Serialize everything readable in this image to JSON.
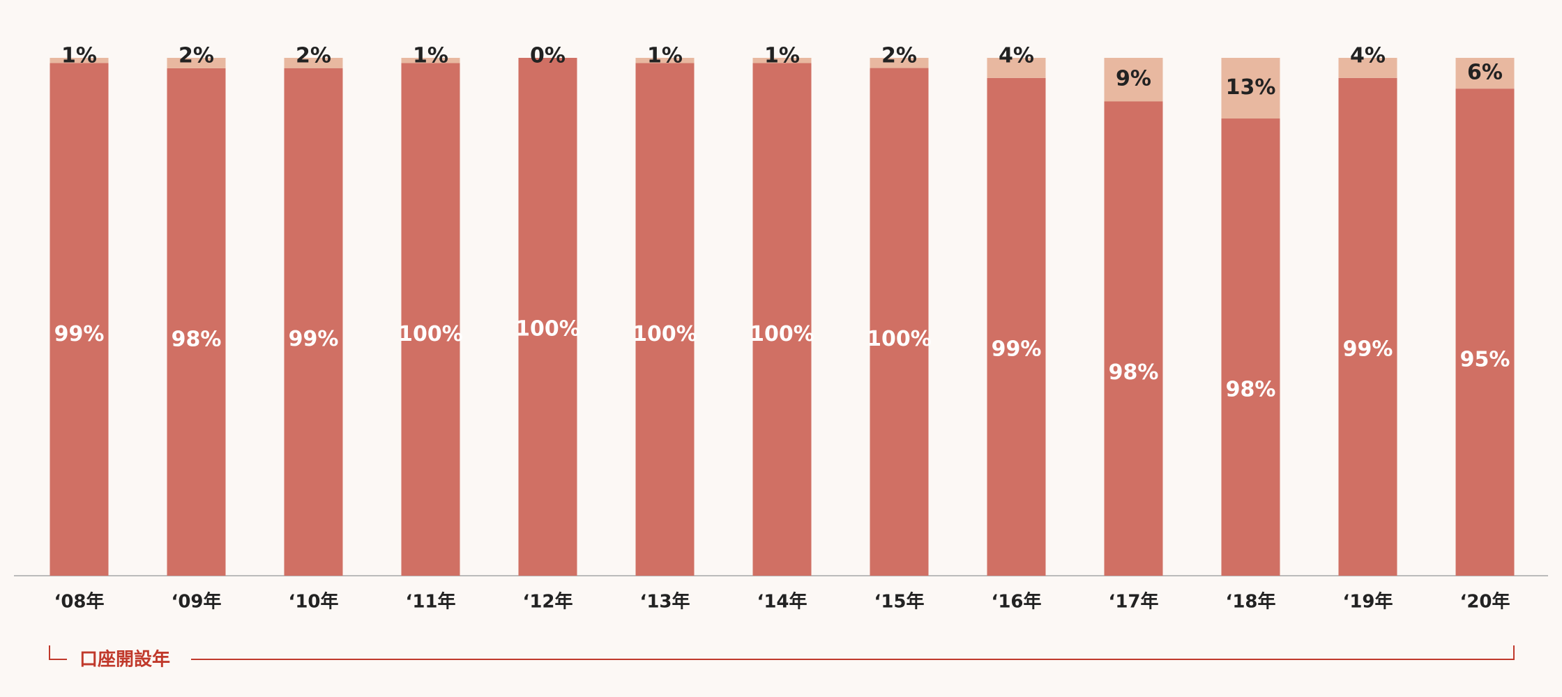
{
  "chart_data": {
    "type": "bar",
    "stacked": true,
    "normalized": true,
    "categories": [
      "‘08年",
      "‘09年",
      "‘10年",
      "‘11年",
      "‘12年",
      "‘13年",
      "‘14年",
      "‘15年",
      "‘16年",
      "‘17年",
      "‘18年",
      "‘19年",
      "‘20年"
    ],
    "series": [
      {
        "color": "#d07064",
        "values": [
          99,
          98,
          99,
          100,
          100,
          100,
          100,
          100,
          99,
          98,
          98,
          99,
          95
        ],
        "value_labels": [
          "99%",
          "98%",
          "99%",
          "100%",
          "100%",
          "100%",
          "100%",
          "100%",
          "99%",
          "98%",
          "98%",
          "99%",
          "95%"
        ]
      },
      {
        "color": "#e8b8a0",
        "values": [
          1,
          2,
          2,
          1,
          0,
          1,
          1,
          2,
          4,
          9,
          13,
          4,
          6
        ],
        "value_labels": [
          "1%",
          "2%",
          "2%",
          "1%",
          "0%",
          "1%",
          "1%",
          "2%",
          "4%",
          "9%",
          "13%",
          "4%",
          "6%"
        ]
      }
    ],
    "x_label": "口座開設年"
  }
}
